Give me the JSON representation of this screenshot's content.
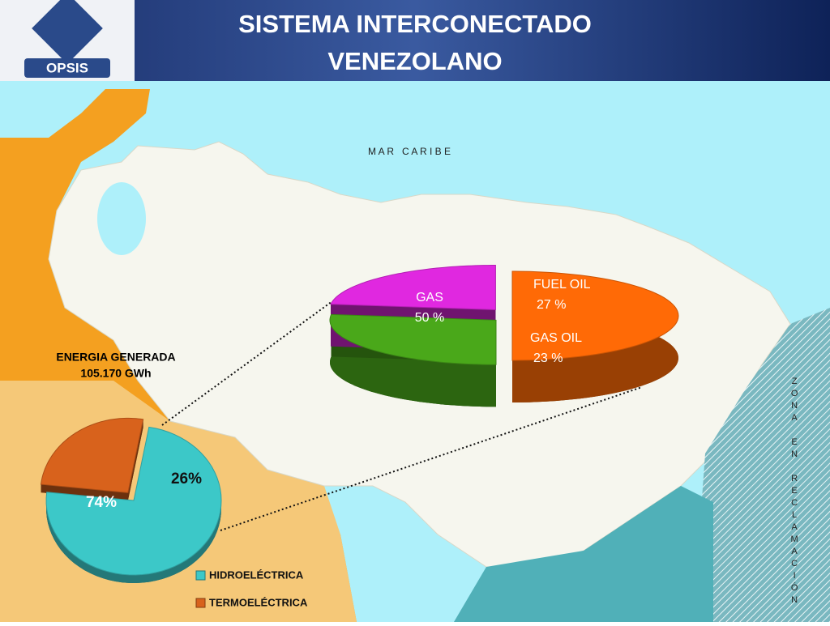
{
  "header": {
    "title_lines": [
      "SISTEMA INTERCONECTADO",
      "VENEZOLANO"
    ],
    "logo": "OPSIS"
  },
  "map_labels": {
    "sea": "M A R   C A R I B E",
    "zone": "ZONA EN RECLAMACIÓN"
  },
  "chart_data": [
    {
      "type": "pie",
      "title": "ENERGIA GENERADA",
      "subtitle": "105.170 GWh",
      "categories": [
        "HIDROELÉCTRICA",
        "TERMOELÉCTRICA"
      ],
      "values": [
        74,
        26
      ],
      "value_labels": [
        "74%",
        "26%"
      ],
      "colors": [
        "#3cc8c8",
        "#d8621c"
      ],
      "legend": "bottom-right"
    },
    {
      "type": "pie",
      "categories": [
        "GAS",
        "FUEL OIL",
        "GAS OIL"
      ],
      "values": [
        50,
        27,
        23
      ],
      "value_labels": [
        "50 %",
        "27 %",
        "23 %"
      ],
      "colors": [
        "#ff6a06",
        "#4aa81a",
        "#e028e0"
      ]
    }
  ]
}
